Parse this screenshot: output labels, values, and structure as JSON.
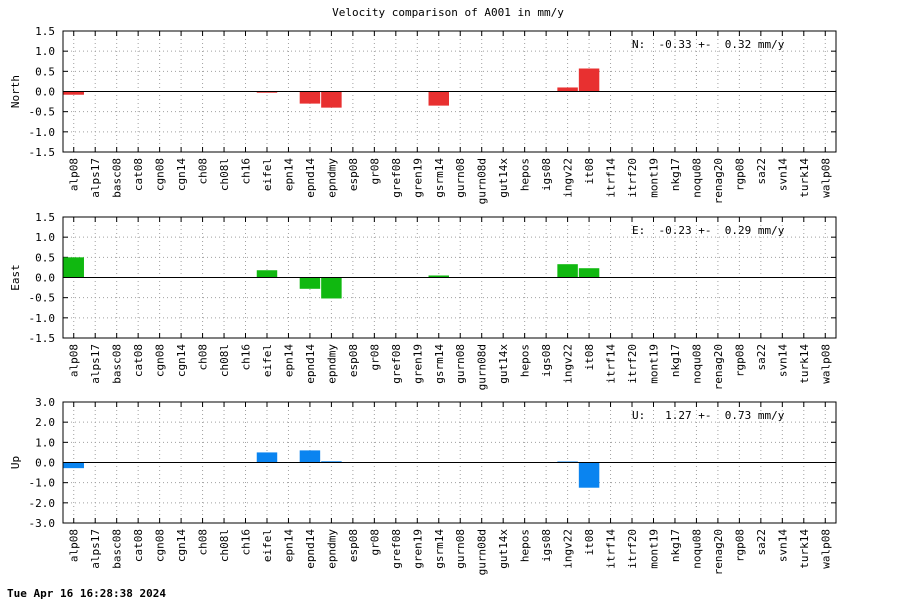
{
  "title": "Velocity comparison of A001 in mm/y",
  "timestamp": "Tue Apr 16 16:28:38 2024",
  "chart_data": [
    {
      "type": "bar",
      "ylabel": "North",
      "ylim": [
        -1.5,
        1.5
      ],
      "yticks": [
        "1.5",
        "1.0",
        "0.5",
        "0.0",
        "-0.5",
        "-1.0",
        "-1.5"
      ],
      "color": "#e83030",
      "annotation": "N:  -0.33 +-  0.32 mm/y",
      "grid": true,
      "categories": [
        "alp08",
        "alps17",
        "basc08",
        "cat08",
        "cgn08",
        "cgn14",
        "ch08",
        "ch08l",
        "ch16",
        "eifel",
        "epn14",
        "epnd14",
        "epndmy",
        "esp08",
        "gr08",
        "gref08",
        "gren19",
        "gsrm14",
        "gurn08",
        "gurn08d",
        "gut14x",
        "hepos",
        "igs08",
        "ingv22",
        "it08",
        "itrf14",
        "itrf20",
        "mont19",
        "nkg17",
        "noqu08",
        "renag20",
        "rgp08",
        "sa22",
        "svn14",
        "turk14",
        "walp08"
      ],
      "values": [
        -0.08,
        0,
        0,
        0,
        0,
        0,
        0,
        0,
        0,
        -0.03,
        0,
        -0.3,
        -0.4,
        0,
        0,
        0,
        0,
        -0.35,
        0,
        0,
        0,
        0,
        0,
        0.1,
        0.57,
        0,
        0,
        0,
        0,
        0,
        0,
        0,
        0,
        0,
        0,
        0
      ]
    },
    {
      "type": "bar",
      "ylabel": "East",
      "ylim": [
        -1.5,
        1.5
      ],
      "yticks": [
        "1.5",
        "1.0",
        "0.5",
        "0.0",
        "-0.5",
        "-1.0",
        "-1.5"
      ],
      "color": "#10b810",
      "annotation": "E:  -0.23 +-  0.29 mm/y",
      "grid": true,
      "categories": [
        "alp08",
        "alps17",
        "basc08",
        "cat08",
        "cgn08",
        "cgn14",
        "ch08",
        "ch08l",
        "ch16",
        "eifel",
        "epn14",
        "epnd14",
        "epndmy",
        "esp08",
        "gr08",
        "gref08",
        "gren19",
        "gsrm14",
        "gurn08",
        "gurn08d",
        "gut14x",
        "hepos",
        "igs08",
        "ingv22",
        "it08",
        "itrf14",
        "itrf20",
        "mont19",
        "nkg17",
        "noqu08",
        "renag20",
        "rgp08",
        "sa22",
        "svn14",
        "turk14",
        "walp08"
      ],
      "values": [
        0.5,
        0,
        0,
        0,
        0,
        0,
        0,
        0,
        0,
        0.18,
        0,
        -0.28,
        -0.52,
        0,
        0,
        0,
        0,
        0.05,
        0,
        0,
        0,
        0,
        0,
        0.33,
        0.23,
        0,
        0,
        0,
        0,
        0,
        0,
        0,
        0,
        0,
        0,
        0
      ]
    },
    {
      "type": "bar",
      "ylabel": "Up",
      "ylim": [
        -3.0,
        3.0
      ],
      "yticks": [
        "3.0",
        "2.0",
        "1.0",
        "0.0",
        "-1.0",
        "-2.0",
        "-3.0"
      ],
      "color": "#0a84f0",
      "annotation": "U:   1.27 +-  0.73 mm/y",
      "grid": true,
      "categories": [
        "alp08",
        "alps17",
        "basc08",
        "cat08",
        "cgn08",
        "cgn14",
        "ch08",
        "ch08l",
        "ch16",
        "eifel",
        "epn14",
        "epnd14",
        "epndmy",
        "esp08",
        "gr08",
        "gref08",
        "gren19",
        "gsrm14",
        "gurn08",
        "gurn08d",
        "gut14x",
        "hepos",
        "igs08",
        "ingv22",
        "it08",
        "itrf14",
        "itrf20",
        "mont19",
        "nkg17",
        "noqu08",
        "renag20",
        "rgp08",
        "sa22",
        "svn14",
        "turk14",
        "walp08"
      ],
      "values": [
        -0.28,
        0,
        0,
        0,
        0,
        0,
        0,
        0,
        0,
        0.5,
        0,
        0.6,
        0.06,
        0,
        0,
        0,
        0,
        0,
        0,
        0,
        0,
        0,
        0,
        0.05,
        -1.25,
        0,
        0,
        0,
        0,
        0,
        0,
        0,
        0,
        0,
        0,
        0
      ]
    }
  ]
}
